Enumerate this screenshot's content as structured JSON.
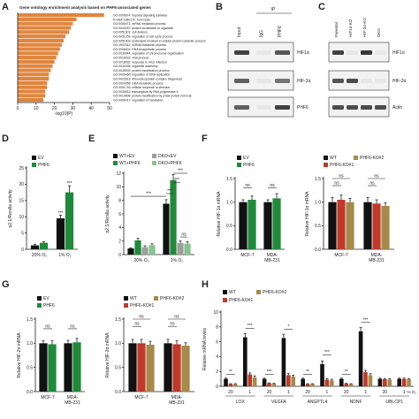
{
  "colors": {
    "black": "#111111",
    "green": "#1f8a3a",
    "gray": "#9e9e9e",
    "lightgreen": "#86c48f",
    "red": "#c0392b",
    "gold": "#a58a4a",
    "orange": "#e0863f"
  },
  "panels": {
    "A": {
      "label": "A",
      "title": "Gene ontology enrichment analysis based on PHF6-associated genes",
      "xlabel": "-log10(P)",
      "ticks": [
        "0",
        "10",
        "20",
        "30",
        "40",
        "50"
      ]
    },
    "B": {
      "label": "B",
      "ip": "IP",
      "lanes": [
        "Input",
        "IgG",
        "PHF6"
      ],
      "rows": [
        "HIF1α",
        "HIF-2α",
        "PHF6"
      ]
    },
    "C": {
      "label": "C",
      "lanes": [
        "Parental",
        "HIF1α-KO",
        "HIF-2α-KO",
        "DKO"
      ],
      "rows": [
        "HIF1α",
        "HIF-2α",
        "Actin"
      ]
    },
    "D": {
      "label": "D",
      "ylabel": "p2.1/Renilla activity",
      "yticks": [
        "0",
        "5",
        "10",
        "15",
        "20",
        "25"
      ],
      "cats": [
        "20% O₂",
        "1% O₂"
      ],
      "legend": [
        "EV",
        "PHF6"
      ],
      "sig": [
        "***",
        "***"
      ]
    },
    "E": {
      "label": "E",
      "ylabel": "p2.1/Renilla activity",
      "yticks": [
        "0",
        "2",
        "4",
        "6",
        "8",
        "10",
        "12"
      ],
      "cats": [
        "20% O₂",
        "1% O₂"
      ],
      "legend": [
        "WT+EV",
        "WT+PHF6",
        "DKO+EV",
        "DKO+PHF6"
      ],
      "sig": [
        "***",
        "***",
        "***",
        "***",
        "ns"
      ]
    },
    "F": {
      "label": "F",
      "ylabel": "Relative HIF-1α mRNA",
      "yticks": [
        "0.0",
        "0.5",
        "1.0",
        "1.5"
      ],
      "legend1": [
        "EV",
        "PHF6"
      ],
      "legend2": [
        "WT",
        "PHF6-KO#1",
        "PHF6-KO#2"
      ],
      "cats": [
        "MCF-7",
        "MDA-MB-231"
      ],
      "ns": "ns"
    },
    "G": {
      "label": "G",
      "ylabel": "Relative HIF-2α mRNA",
      "yticks": [
        "0.0",
        "0.5",
        "1.0",
        "1.5"
      ],
      "legend1": [
        "EV",
        "PHF6"
      ],
      "legend2": [
        "WT",
        "PHF6-KO#1",
        "PHF6-KO#2"
      ],
      "cats": [
        "MCF-7",
        "MDA-MB-231"
      ],
      "ns": "ns"
    },
    "H": {
      "label": "H",
      "ylabel": "Relative mRNA levels",
      "yticks": [
        "0",
        "2",
        "4",
        "6",
        "8",
        "10"
      ],
      "legend": [
        "WT",
        "PHF6-KO#1",
        "PHF6-KO#2"
      ],
      "genes": [
        "LOX",
        "VEGFA",
        "ANGPTL4",
        "NDNF",
        "UBLCP1"
      ],
      "o2": [
        "20",
        "1"
      ],
      "unit": "% O₂",
      "sig": [
        "**",
        "***",
        "***",
        "*",
        "**",
        "***",
        "**",
        "***",
        "*",
        "***"
      ]
    }
  },
  "chart_data": [
    {
      "panel": "A",
      "type": "bar",
      "orientation": "horizontal",
      "xlim": [
        0,
        50
      ],
      "categories": [
        "GO:0006974: hypoxia signaling pathway",
        "R-HSA-1640170: Cell Cycle",
        "GO:0006471: mRNA metabolic process",
        "GO:0044257: protein localization to organelle",
        "GO:0051301: cell division",
        "GO:0051253: regulation of cell cycle process",
        "GO:0051603: proteolysis involved in cellular protein catabolic process",
        "GO:1902311: ncRNA metabolic process",
        "GO:0006401: RNA biosynthetic process",
        "GO:0030044: regulation of chromosome organization",
        "GO:0016032: viral process",
        "GO:0018032: response to virus infection",
        "GO:0030335: organelle assembly",
        "GO:0045002: protein modification process",
        "GO:0000460: regulation of DNA replication",
        "GO:0022613: ribonucleoprotein complex biogenesis",
        "GO:0000956: DNA metabolic process",
        "GO:0051716: cellular response to stimulus",
        "GO:0030512: transcription by RNA polymerase II",
        "GO:0010608: protein modification by small protein removal",
        "GO:0006417: regulation of translation"
      ],
      "values": [
        47,
        32,
        30,
        29,
        28,
        26,
        25,
        24,
        23,
        22,
        21,
        20,
        19,
        18,
        17,
        17,
        16,
        16,
        15,
        15,
        14
      ]
    },
    {
      "panel": "D",
      "type": "bar",
      "categories": [
        "20% O₂",
        "1% O₂"
      ],
      "ylim": [
        0,
        25
      ],
      "series": [
        {
          "name": "EV",
          "values": [
            1.2,
            9.5
          ],
          "err": [
            0.3,
            1.0
          ]
        },
        {
          "name": "PHF6",
          "values": [
            2.0,
            17.5
          ],
          "err": [
            0.3,
            2.0
          ]
        }
      ]
    },
    {
      "panel": "E",
      "type": "bar",
      "categories": [
        "20% O₂",
        "1% O₂"
      ],
      "ylim": [
        0,
        12
      ],
      "series": [
        {
          "name": "WT+EV",
          "values": [
            0.9,
            7.5
          ],
          "err": [
            0.1,
            0.6
          ]
        },
        {
          "name": "WT+PHF6",
          "values": [
            2.1,
            11.0
          ],
          "err": [
            0.3,
            0.8
          ]
        },
        {
          "name": "DKO+EV",
          "values": [
            1.1,
            1.7
          ],
          "err": [
            0.2,
            0.3
          ]
        },
        {
          "name": "DKO+PHF6",
          "values": [
            1.4,
            1.6
          ],
          "err": [
            0.2,
            0.3
          ]
        }
      ]
    },
    {
      "panel": "F-left",
      "type": "bar",
      "categories": [
        "MCF-7",
        "MDA-MB-231"
      ],
      "ylim": [
        0,
        1.5
      ],
      "series": [
        {
          "name": "EV",
          "values": [
            1.0,
            1.0
          ],
          "err": [
            0.05,
            0.05
          ]
        },
        {
          "name": "PHF6",
          "values": [
            1.05,
            1.08
          ],
          "err": [
            0.08,
            0.1
          ]
        }
      ]
    },
    {
      "panel": "F-right",
      "type": "bar",
      "categories": [
        "MCF-7",
        "MDA-MB-231"
      ],
      "ylim": [
        0,
        1.5
      ],
      "series": [
        {
          "name": "WT",
          "values": [
            1.0,
            1.0
          ],
          "err": [
            0.1,
            0.1
          ]
        },
        {
          "name": "PHF6-KO#1",
          "values": [
            1.05,
            0.97
          ],
          "err": [
            0.1,
            0.08
          ]
        },
        {
          "name": "PHF6-KO#2",
          "values": [
            1.0,
            0.92
          ],
          "err": [
            0.08,
            0.07
          ]
        }
      ]
    },
    {
      "panel": "G-left",
      "type": "bar",
      "categories": [
        "MCF-7",
        "MDA-MB-231"
      ],
      "ylim": [
        0,
        1.5
      ],
      "series": [
        {
          "name": "EV",
          "values": [
            1.0,
            1.0
          ],
          "err": [
            0.05,
            0.06
          ]
        },
        {
          "name": "PHF6",
          "values": [
            0.98,
            1.02
          ],
          "err": [
            0.07,
            0.08
          ]
        }
      ]
    },
    {
      "panel": "G-right",
      "type": "bar",
      "categories": [
        "MCF-7",
        "MDA-MB-231"
      ],
      "ylim": [
        0,
        1.5
      ],
      "series": [
        {
          "name": "WT",
          "values": [
            1.0,
            1.0
          ],
          "err": [
            0.08,
            0.08
          ]
        },
        {
          "name": "PHF6-KO#1",
          "values": [
            1.0,
            0.98
          ],
          "err": [
            0.08,
            0.07
          ]
        },
        {
          "name": "PHF6-KO#2",
          "values": [
            0.97,
            0.95
          ],
          "err": [
            0.07,
            0.06
          ]
        }
      ]
    },
    {
      "panel": "H",
      "type": "bar",
      "ylim": [
        0,
        10
      ],
      "categories": [
        "LOX 20",
        "LOX 1",
        "VEGFA 20",
        "VEGFA 1",
        "ANGPTL4 20",
        "ANGPTL4 1",
        "NDNF 20",
        "NDNF 1",
        "UBLCP1 20",
        "UBLCP1 1"
      ],
      "series": [
        {
          "name": "WT",
          "values": [
            1.0,
            6.6,
            1.0,
            6.5,
            1.0,
            3.0,
            1.0,
            7.4,
            1.0,
            1.0
          ],
          "err": [
            0.1,
            0.5,
            0.1,
            0.5,
            0.1,
            0.4,
            0.1,
            0.5,
            0.1,
            0.1
          ]
        },
        {
          "name": "PHF6-KO#1",
          "values": [
            0.3,
            1.6,
            0.4,
            1.5,
            0.3,
            0.9,
            0.35,
            1.9,
            0.95,
            1.0
          ],
          "err": [
            0.05,
            0.2,
            0.05,
            0.2,
            0.05,
            0.15,
            0.05,
            0.25,
            0.1,
            0.1
          ]
        },
        {
          "name": "PHF6-KO#2",
          "values": [
            0.3,
            1.2,
            0.35,
            1.3,
            0.3,
            0.8,
            0.3,
            1.5,
            0.9,
            0.95
          ],
          "err": [
            0.05,
            0.2,
            0.05,
            0.2,
            0.05,
            0.15,
            0.05,
            0.2,
            0.1,
            0.1
          ]
        }
      ]
    }
  ]
}
